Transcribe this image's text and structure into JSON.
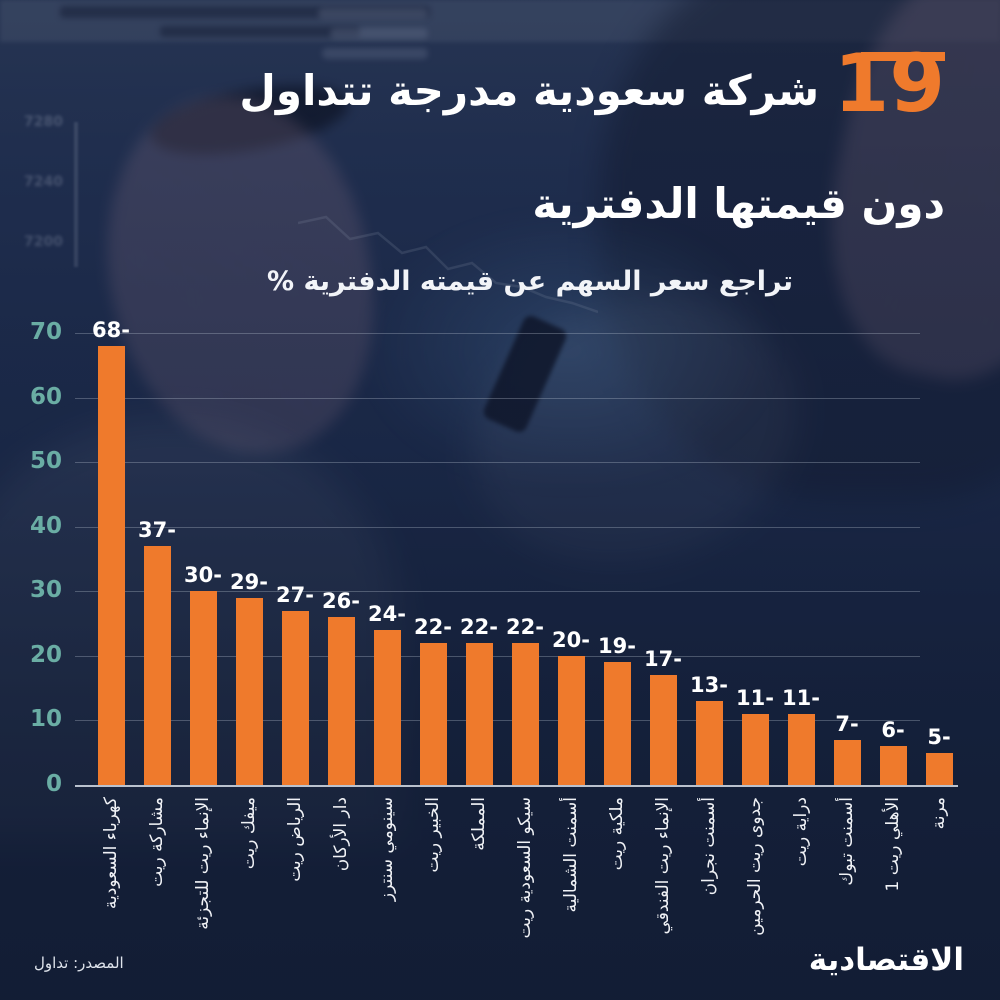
{
  "colors": {
    "accent_orange": "#ef7a2c",
    "bar_orange": "#ef7a2c",
    "tick_teal": "#6aada4",
    "background_navy": "#1b2a4b",
    "text_white": "#ffffff"
  },
  "header": {
    "big_number": "19",
    "title_line1_text": "شركة سعودية مدرجة تتداول",
    "title_line2": "دون قيمتها الدفترية",
    "subtitle": "تراجع سعر السهم عن قيمته الدفترية %"
  },
  "chart_data": {
    "type": "bar",
    "title": "تراجع سعر السهم عن قيمته الدفترية %",
    "categories": [
      "كهرباء السعودية",
      "مشاركة ريت",
      "الإنماء ريت للتجزئة",
      "ميفك ريت",
      "الرياض ريت",
      "دار الأركان",
      "سينومي سنترز",
      "الخبير ريت",
      "المملكة",
      "سيكو السعودية ريت",
      "أسمنت الشمالية",
      "ملكية ريت",
      "الإنماء ريت الفندقي",
      "أسمنت نجران",
      "جدوى ريت الحرمين",
      "دراية ريت",
      "أسمنت تبوك",
      "الأهلي ريت 1",
      "مرنة"
    ],
    "values": [
      68,
      37,
      30,
      29,
      27,
      26,
      24,
      22,
      22,
      22,
      20,
      19,
      17,
      13,
      11,
      11,
      7,
      6,
      5
    ],
    "value_labels": [
      "68-",
      "37-",
      "30-",
      "29-",
      "27-",
      "26-",
      "24-",
      "22-",
      "22-",
      "22-",
      "20-",
      "19-",
      "17-",
      "13-",
      "11-",
      "11-",
      "7-",
      "6-",
      "5-"
    ],
    "yticks": [
      0,
      10,
      20,
      30,
      40,
      50,
      60,
      70
    ],
    "ylim": [
      0,
      70
    ],
    "xlabel": "",
    "ylabel": "",
    "grid": true,
    "legend": "none",
    "bar_color": "#ef7a2c"
  },
  "footer": {
    "source": "المصدر: تداول",
    "brand": "الاقتصادية"
  },
  "background": {
    "ticker_values": [
      "7280",
      "7240",
      "7200"
    ]
  }
}
